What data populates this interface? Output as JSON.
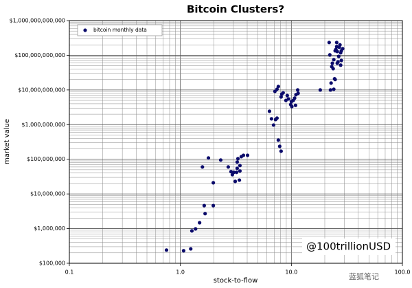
{
  "chart_data": {
    "type": "scatter",
    "title": "Bitcoin Clusters?",
    "x_label": "stock-to-flow",
    "y_label": "market value",
    "log_x": true,
    "log_y": true,
    "grid": true,
    "minor_grid": true,
    "legend_position": "upper left",
    "annotation": "@100trillionUSD",
    "watermark": "蓝狐笔记",
    "xlim": [
      0.1,
      100
    ],
    "ylim": [
      100000,
      1000000000000
    ],
    "xticks": [
      0.1,
      {
        "value": 1,
        "label": "1.0"
      },
      {
        "value": 10,
        "label": "10.0"
      },
      {
        "value": 100,
        "label": "100.0"
      }
    ],
    "yticks": [
      {
        "value": 100000,
        "label": "$100,000"
      },
      {
        "value": 1000000,
        "label": "$1,000,000"
      },
      {
        "value": 10000000,
        "label": "$10,000,000"
      },
      {
        "value": 100000000,
        "label": "$100,000,000"
      },
      {
        "value": 1000000000,
        "label": "$1,000,000,000"
      },
      {
        "value": 10000000000,
        "label": "$10,000,000,000"
      },
      {
        "value": 100000000000,
        "label": "$100,000,000,000"
      },
      {
        "value": 1000000000000,
        "label": "$1,000,000,000,000"
      }
    ],
    "series": [
      {
        "name": "bitcoin monthly data",
        "color": "#0b0b6b",
        "x": [
          0.75,
          1.07,
          1.24,
          1.27,
          1.37,
          1.49,
          1.67,
          1.64,
          1.98,
          1.98,
          1.58,
          1.79,
          2.31,
          2.7,
          2.86,
          2.94,
          3.03,
          3.12,
          3.21,
          3.25,
          3.25,
          3.3,
          3.4,
          3.44,
          3.44,
          3.54,
          3.7,
          4.03,
          6.35,
          6.62,
          6.91,
          7.21,
          7.42,
          7.63,
          7.85,
          8.08,
          7.11,
          7.42,
          7.63,
          8.08,
          8.2,
          8.43,
          8.93,
          9.18,
          9.44,
          9.86,
          10.0,
          10.1,
          10.4,
          10.7,
          10.9,
          11.0,
          11.4,
          11.5,
          18.2,
          21.9,
          22.2,
          22.5,
          22.8,
          23.4,
          23.8,
          24.1,
          24.5,
          24.8,
          25.2,
          25.6,
          25.9,
          26.3,
          26.7,
          27.0,
          27.4,
          27.8,
          28.2,
          29.0,
          23.1,
          24.1,
          24.8,
          25.9,
          27.8,
          25.6,
          28.2
        ],
        "values": [
          240000,
          230000,
          260000,
          860000,
          980000,
          1480000,
          2700000,
          4600000,
          4600000,
          21000000,
          60000000,
          109000000,
          95000000,
          60000000,
          44000000,
          36000000,
          42000000,
          23000000,
          42000000,
          83000000,
          55000000,
          104000000,
          25000000,
          66000000,
          46000000,
          119000000,
          130000000,
          130000000,
          2430000000,
          1470000000,
          970000000,
          1400000000,
          1540000000,
          357000000,
          236000000,
          171000000,
          9100000000,
          10500000000,
          12600000000,
          6300000000,
          7600000000,
          8300000000,
          5000000000,
          6900000000,
          5500000000,
          3800000000,
          4600000000,
          3300000000,
          5000000000,
          5800000000,
          3600000000,
          7300000000,
          10000000000,
          8000000000,
          10000000000,
          234000000000,
          103000000000,
          10000000000,
          15800000000,
          59000000000,
          41000000000,
          75000000000,
          21000000000,
          135000000000,
          148000000000,
          178000000000,
          129000000000,
          65000000000,
          93000000000,
          170000000000,
          200000000000,
          118000000000,
          71000000000,
          155000000000,
          47000000000,
          10500000000,
          20000000000,
          59000000000,
          52000000000,
          234000000000,
          135000000000
        ]
      }
    ]
  }
}
